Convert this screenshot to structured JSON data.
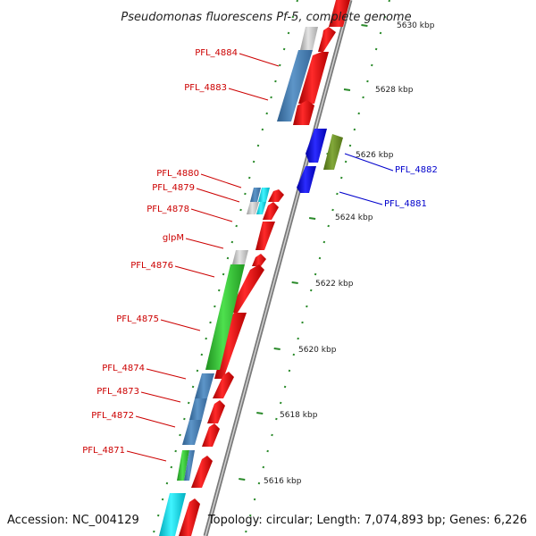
{
  "title": "Pseudomonas fluorescens Pf-5, complete genome",
  "footer": {
    "accession": "Accession: NC_004129",
    "summary": "Topology: circular; Length: 7,074,893 bp; Genes: 6,226"
  },
  "colors": {
    "label_left": "#cc0000",
    "label_right": "#0000cc",
    "backbone": "#999999",
    "dotted_track": "#2a8a2a",
    "forward_cds": "#ee0000",
    "reverse_cds": "#1a1aee",
    "gene_steel": "#4a82b4",
    "gene_green": "#3cc43c",
    "gene_olive": "#6b8e23",
    "gene_cyan": "#00d8e8",
    "gene_gray": "#c8c8c8"
  },
  "ticks": [
    {
      "label": "5630 kbp"
    },
    {
      "label": "5628 kbp"
    },
    {
      "label": "5626 kbp"
    },
    {
      "label": "5624 kbp"
    },
    {
      "label": "5622 kbp"
    },
    {
      "label": "5620 kbp"
    },
    {
      "label": "5618 kbp"
    },
    {
      "label": "5616 kbp"
    }
  ],
  "genes_left": [
    {
      "label": "PFL_4884"
    },
    {
      "label": "PFL_4883"
    },
    {
      "label": "PFL_4880"
    },
    {
      "label": "PFL_4879"
    },
    {
      "label": "PFL_4878"
    },
    {
      "label": "glpM"
    },
    {
      "label": "PFL_4876"
    },
    {
      "label": "PFL_4875"
    },
    {
      "label": "PFL_4874"
    },
    {
      "label": "PFL_4873"
    },
    {
      "label": "PFL_4872"
    },
    {
      "label": "PFL_4871"
    }
  ],
  "genes_right": [
    {
      "label": "PFL_4882"
    },
    {
      "label": "PFL_4881"
    }
  ]
}
